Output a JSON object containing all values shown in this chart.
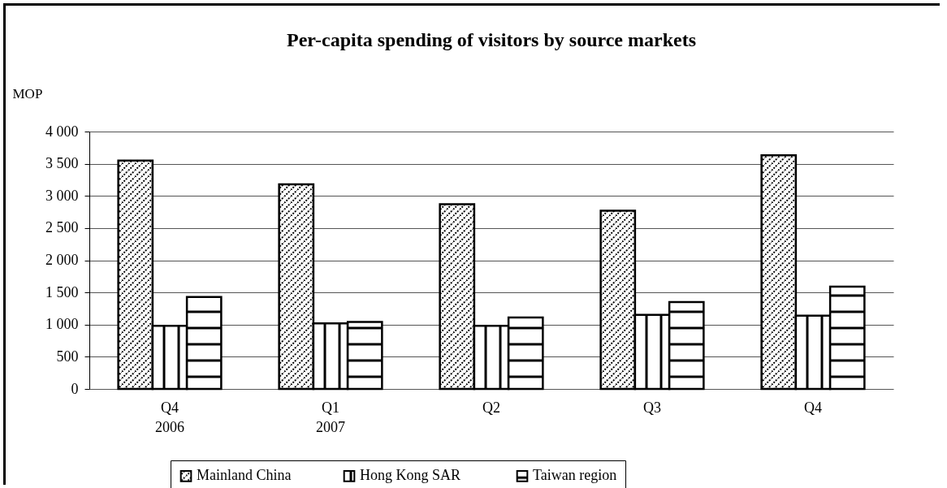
{
  "chart_data": {
    "type": "bar",
    "title": "Per-capita spending of visitors by source markets",
    "ylabel": "MOP",
    "categories": [
      "Q4\n\n2006",
      "Q1\n\n2007",
      "Q2",
      "Q3",
      "Q4"
    ],
    "series": [
      {
        "name": "Mainland China",
        "color": "#000000",
        "values": [
          3550,
          3180,
          2870,
          2770,
          3630
        ]
      },
      {
        "name": "Hong Kong  SAR",
        "color": "#000000",
        "values": [
          980,
          1020,
          980,
          1150,
          1140
        ]
      },
      {
        "name": "Taiwan region",
        "color": "#000000",
        "values": [
          1430,
          1040,
          1110,
          1350,
          1590
        ]
      }
    ],
    "ylim": [
      0,
      4000
    ],
    "yticks": [
      {
        "value": 0,
        "label": "0"
      },
      {
        "value": 500,
        "label": "500"
      },
      {
        "value": 1000,
        "label": "1 000"
      },
      {
        "value": 1500,
        "label": "1 500"
      },
      {
        "value": 2000,
        "label": "2 000"
      },
      {
        "value": 2500,
        "label": "2 500"
      },
      {
        "value": 3000,
        "label": "3 000"
      },
      {
        "value": 3500,
        "label": "3 500"
      },
      {
        "value": 4000,
        "label": "4 000"
      }
    ],
    "grid": "y",
    "legend": "bottom"
  }
}
